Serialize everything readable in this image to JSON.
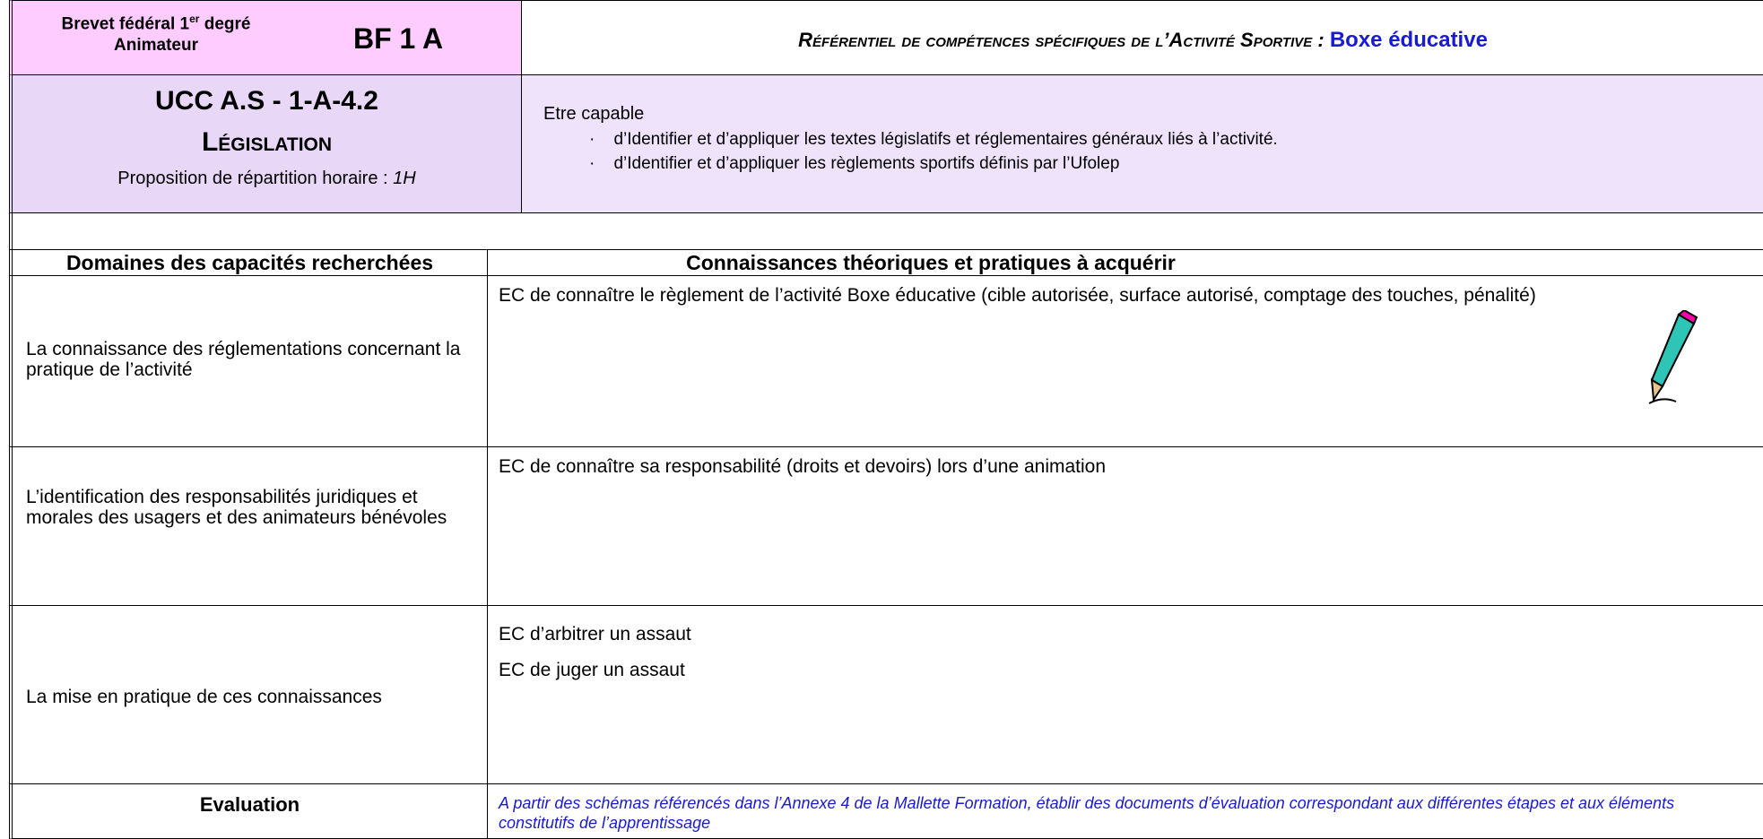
{
  "header": {
    "level_part1": "Brevet fédéral 1",
    "level_sup": "er",
    "level_part2": "degré",
    "role": "Animateur",
    "code": "BF 1 A",
    "title": "Référentiel de compétences spécifiques de l’Activité Sportive :",
    "activity": "Boxe éducative"
  },
  "unit": {
    "code": "UCC  A.S - 1-A-4.2",
    "name": "Législation",
    "hours_label": "Proposition de répartition horaire :",
    "hours": "1H"
  },
  "objectives": {
    "intro": "Etre capable",
    "items": [
      "d’Identifier et d’appliquer les textes législatifs et réglementaires généraux liés à l’activité.",
      "d’Identifier et d’appliquer les règlements sportifs définis par l’Ufolep"
    ]
  },
  "table": {
    "headers": [
      "Domaines des capacités recherchées",
      "Connaissances théoriques et pratiques à acquérir"
    ],
    "rows": [
      {
        "domain": "La connaissance des réglementations concernant la pratique de l’activité",
        "knowledge": [
          "EC de connaître le règlement de l’activité Boxe éducative (cible autorisée, surface autorisé, comptage des touches, pénalité)"
        ]
      },
      {
        "domain": "L’identification des  responsabilités juridiques et morales des usagers et des animateurs bénévoles",
        "knowledge": [
          "EC de connaître sa responsabilité (droits et devoirs) lors d’une animation"
        ]
      },
      {
        "domain": "La mise en pratique de ces connaissances",
        "knowledge": [
          "EC d’arbitrer un assaut",
          "EC de juger un assaut"
        ]
      }
    ],
    "evaluation": {
      "label": "Evaluation",
      "text": "A partir des schémas référencés dans l’Annexe 4 de la Mallette Formation, établir des documents d’évaluation correspondant aux différentes étapes et aux éléments constitutifs de l’apprentissage"
    }
  }
}
